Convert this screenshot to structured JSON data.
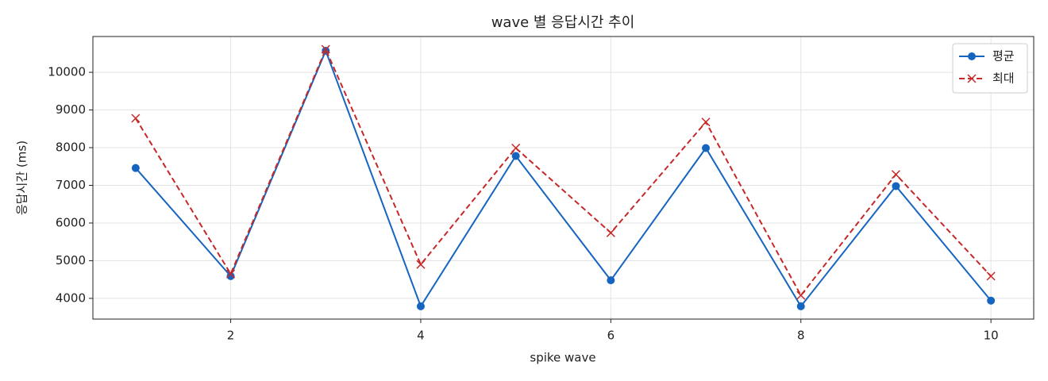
{
  "chart_data": {
    "type": "line",
    "title": "wave 별 응답시간 추이",
    "x_label": "spike wave",
    "y_label": "응답시간 (ms)",
    "x": [
      1,
      2,
      3,
      4,
      5,
      6,
      7,
      8,
      9,
      10
    ],
    "series": [
      {
        "name": "평균",
        "color": "#1565c0",
        "dash": "solid",
        "marker": "circle",
        "values": [
          7460,
          4590,
          10570,
          3790,
          7780,
          4480,
          7990,
          3790,
          6980,
          3940
        ]
      },
      {
        "name": "최대",
        "color": "#c62828",
        "dash": "dashed",
        "marker": "x",
        "values": [
          8780,
          4650,
          10610,
          4900,
          7990,
          5740,
          8680,
          4080,
          7290,
          4590
        ]
      }
    ],
    "xlim": [
      0.55,
      10.45
    ],
    "xticks": [
      2,
      4,
      6,
      8,
      10
    ],
    "ylim": [
      3450,
      10950
    ],
    "yticks": [
      4000,
      5000,
      6000,
      7000,
      8000,
      9000,
      10000
    ],
    "grid": true,
    "legend": "upper right"
  }
}
